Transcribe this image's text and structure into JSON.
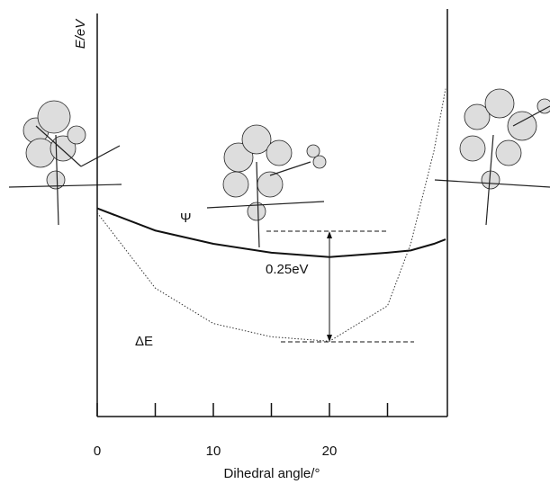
{
  "chart_data": {
    "type": "line",
    "y_label": "E/eV",
    "x_label": "Dihedral angle/°",
    "x": [
      0,
      5,
      10,
      15,
      20,
      25,
      27,
      29,
      30
    ],
    "series": [
      {
        "name": "Ψ",
        "color": "#111111",
        "style": "solid",
        "values": [
          0.47,
          0.42,
          0.39,
          0.37,
          0.36,
          0.37,
          0.375,
          0.39,
          0.4
        ]
      },
      {
        "name": "ΔE",
        "color": "#333333",
        "style": "dotted",
        "values": [
          0.46,
          0.29,
          0.21,
          0.18,
          0.17,
          0.25,
          0.39,
          0.6,
          0.74
        ]
      }
    ],
    "xlim": [
      0,
      30
    ],
    "xticks": [
      0,
      10,
      20
    ],
    "xminor": [
      5,
      15,
      25
    ],
    "ylim": [
      0,
      0.91
    ],
    "annotation": "0.25eV"
  }
}
